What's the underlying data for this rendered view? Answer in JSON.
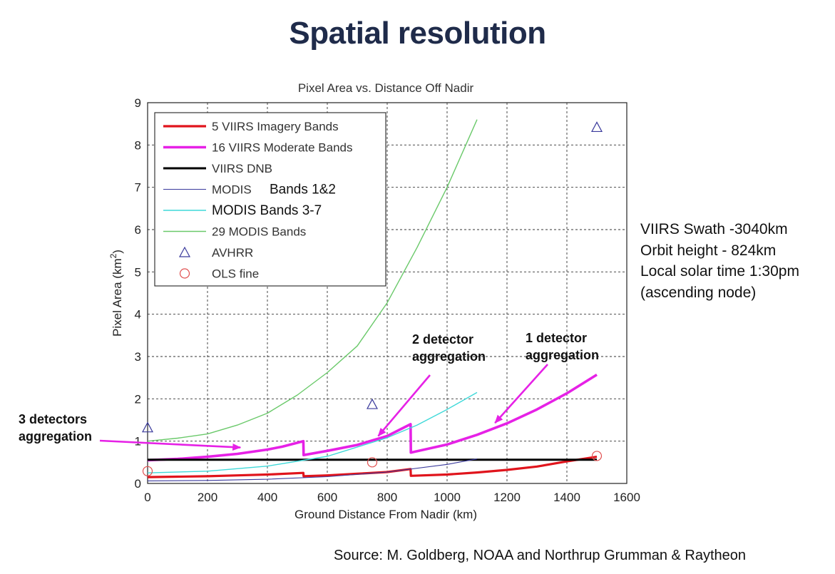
{
  "slide": {
    "title": "Spatial resolution",
    "source": "Source: M. Goldberg, NOAA and Northrup Grumman & Raytheon"
  },
  "side_notes": [
    "VIIRS Swath -3040km",
    "Orbit height - 824km",
    "Local solar time 1:30pm",
    "(ascending node)"
  ],
  "chart_data": {
    "type": "line",
    "title": "Pixel Area vs. Distance Off Nadir",
    "xlabel": "Ground Distance From Nadir (km)",
    "ylabel": "Pixel Area (km",
    "ylabel_sup": "2",
    "ylabel_end": ")",
    "xlim": [
      0,
      1600
    ],
    "ylim": [
      0,
      9
    ],
    "x_ticks": [
      0,
      200,
      400,
      600,
      800,
      1000,
      1200,
      1400,
      1600
    ],
    "y_ticks": [
      0,
      1,
      2,
      3,
      4,
      5,
      6,
      7,
      8,
      9
    ],
    "grid": true,
    "legend_position": "top-left",
    "series": [
      {
        "name": "5 VIIRS Imagery Bands",
        "kind": "line",
        "color": "#e0141c",
        "width": 3.2,
        "x": [
          0,
          100,
          200,
          300,
          400,
          520,
          521,
          600,
          700,
          800,
          878,
          879,
          1000,
          1100,
          1200,
          1300,
          1400,
          1500
        ],
        "y": [
          0.15,
          0.16,
          0.17,
          0.19,
          0.21,
          0.25,
          0.17,
          0.19,
          0.23,
          0.27,
          0.34,
          0.18,
          0.21,
          0.26,
          0.32,
          0.4,
          0.52,
          0.63
        ]
      },
      {
        "name": "16 VIIRS Moderate Bands",
        "kind": "line",
        "color": "#e621e6",
        "width": 3.6,
        "x": [
          0,
          100,
          200,
          300,
          400,
          450,
          520,
          521,
          600,
          700,
          800,
          878,
          879,
          1000,
          1100,
          1200,
          1300,
          1400,
          1500
        ],
        "y": [
          0.55,
          0.58,
          0.63,
          0.7,
          0.8,
          0.87,
          1.0,
          0.67,
          0.77,
          0.91,
          1.12,
          1.4,
          0.73,
          0.92,
          1.15,
          1.42,
          1.75,
          2.13,
          2.57
        ]
      },
      {
        "name": "VIIRS DNB",
        "kind": "line",
        "color": "#000000",
        "width": 3.0,
        "x": [
          0,
          1500
        ],
        "y": [
          0.56,
          0.56
        ]
      },
      {
        "name": "MODIS",
        "label_extra": "Bands 1&2",
        "kind": "line",
        "color": "#3a3a9c",
        "width": 1.1,
        "x": [
          0,
          200,
          400,
          600,
          800,
          1000,
          1100
        ],
        "y": [
          0.06,
          0.07,
          0.1,
          0.16,
          0.27,
          0.45,
          0.58
        ]
      },
      {
        "name": "MODIS Bands 3-7",
        "kind": "line",
        "color": "#3fd9d9",
        "width": 1.4,
        "x": [
          0,
          200,
          400,
          600,
          800,
          900,
          1000,
          1100
        ],
        "y": [
          0.25,
          0.29,
          0.41,
          0.64,
          1.08,
          1.38,
          1.75,
          2.15
        ]
      },
      {
        "name": "29 MODIS Bands",
        "kind": "line",
        "color": "#6ac96a",
        "width": 1.4,
        "x": [
          0,
          100,
          200,
          300,
          400,
          500,
          600,
          700,
          800,
          900,
          1000,
          1100
        ],
        "y": [
          1.0,
          1.07,
          1.17,
          1.38,
          1.66,
          2.09,
          2.62,
          3.25,
          4.27,
          5.58,
          7.0,
          8.6
        ]
      },
      {
        "name": "AVHRR",
        "kind": "marker",
        "marker": "triangle",
        "color": "#3a3a9c",
        "x": [
          0,
          750,
          1500
        ],
        "y": [
          1.32,
          1.87,
          8.42
        ]
      },
      {
        "name": "OLS fine",
        "kind": "marker",
        "marker": "circle",
        "color": "#e05050",
        "x": [
          0,
          750,
          1500
        ],
        "y": [
          0.29,
          0.5,
          0.65
        ]
      }
    ],
    "annotations": [
      {
        "label": [
          "3 detectors",
          "aggregation"
        ],
        "arrow_to": [
          310,
          0.85
        ]
      },
      {
        "label": [
          "2 detector",
          "aggregation"
        ],
        "arrow_to": [
          770,
          1.12
        ]
      },
      {
        "label": [
          "1 detector",
          "aggregation"
        ],
        "arrow_to": [
          1160,
          1.43
        ]
      }
    ]
  }
}
